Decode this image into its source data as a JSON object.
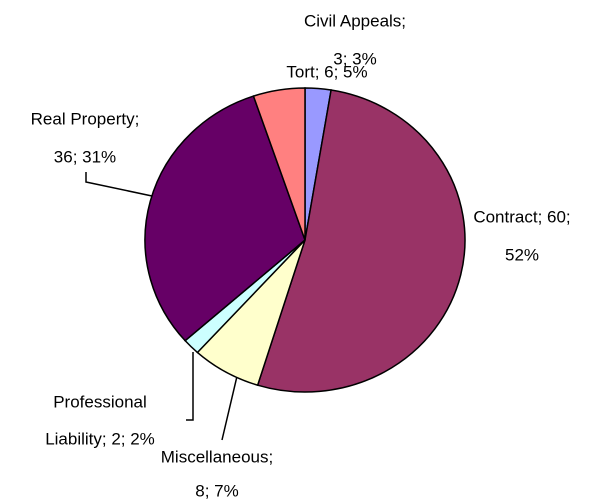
{
  "chart_data": {
    "type": "pie",
    "values": [
      3,
      60,
      8,
      2,
      36,
      6
    ],
    "colors": [
      "#9999ff",
      "#993366",
      "#ffffcc",
      "#ccffff",
      "#660066",
      "#ff8080"
    ],
    "labels": [
      [
        "Civil Appeals;",
        "3; 3%"
      ],
      [
        "Contract; 60;",
        "52%"
      ],
      [
        "Miscellaneous;",
        "8; 7%"
      ],
      [
        "Professional",
        "Liability; 2; 2%"
      ],
      [
        "Real Property;",
        "36; 31%"
      ],
      [
        "Tort; 6; 5%"
      ]
    ]
  }
}
